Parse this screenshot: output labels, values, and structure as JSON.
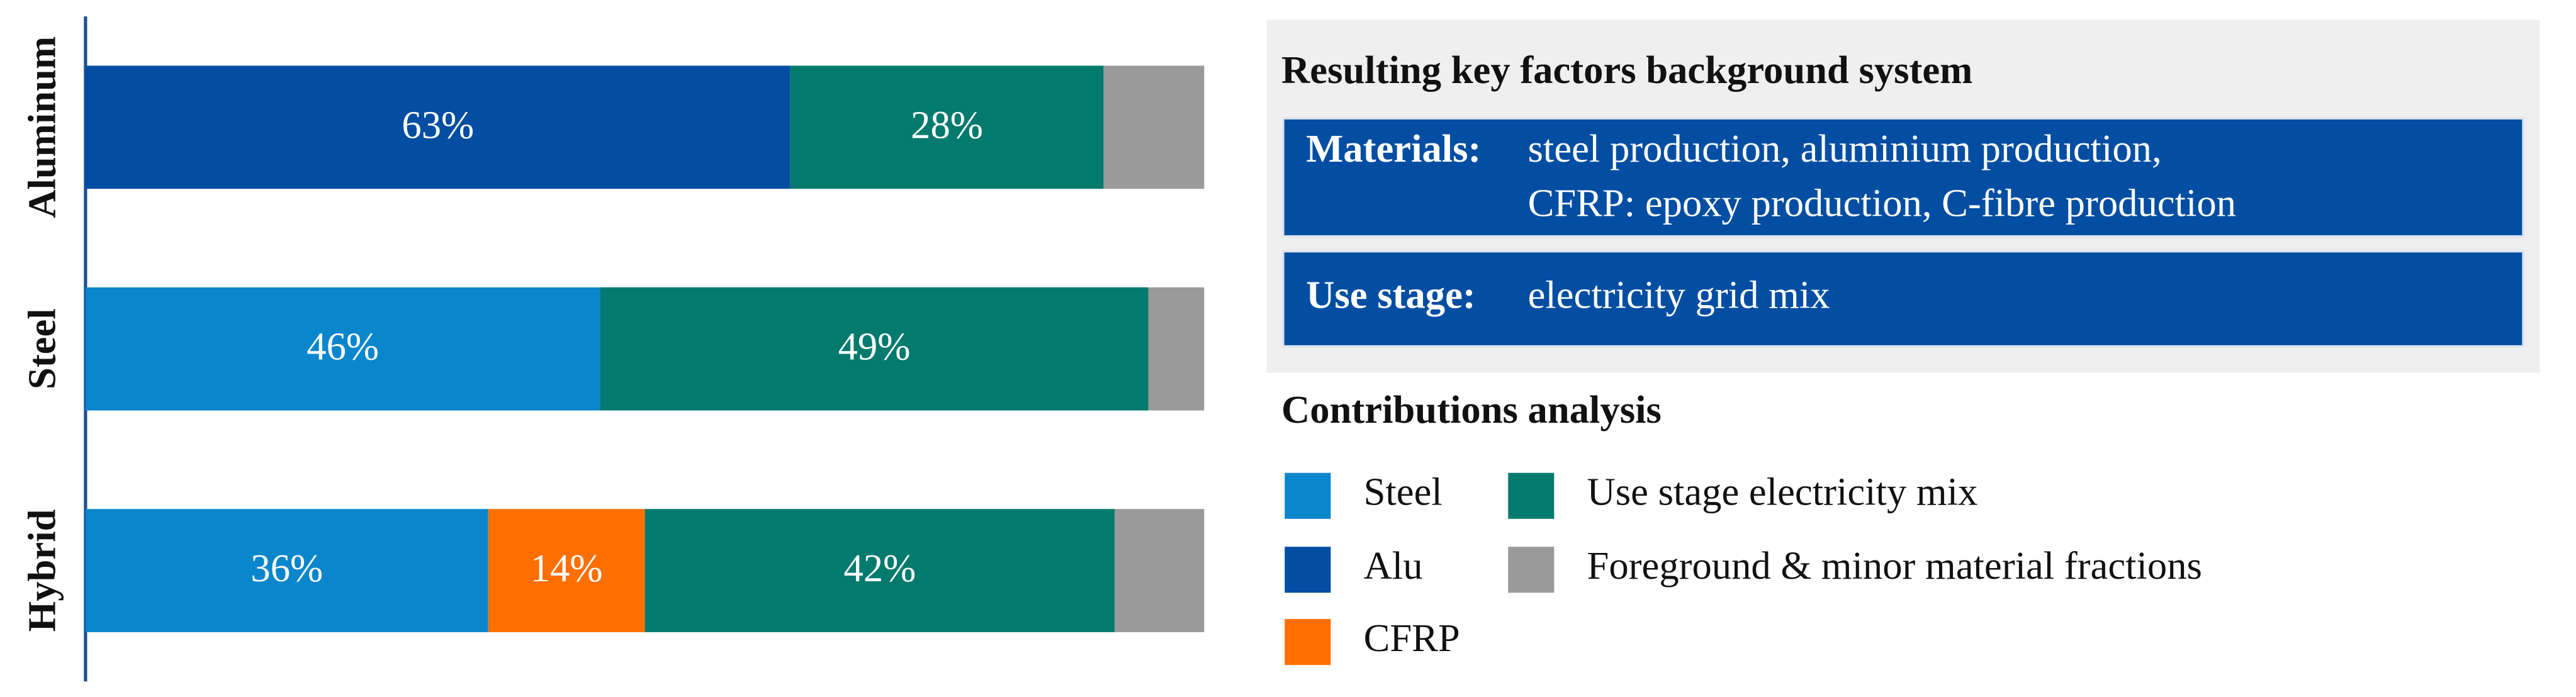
{
  "chart_data": {
    "type": "stacked-barh",
    "categories": [
      "Aluminum",
      "Steel",
      "Hybrid"
    ],
    "series": [
      {
        "name": "Steel",
        "color": "#0a86cc",
        "values": [
          null,
          46,
          36
        ],
        "value_labels": [
          null,
          "46%",
          "36%"
        ]
      },
      {
        "name": "Alu",
        "color": "#034ea2",
        "values": [
          63,
          null,
          null
        ],
        "value_labels": [
          "63%",
          null,
          null
        ]
      },
      {
        "name": "CFRP",
        "color": "#ff6f00",
        "values": [
          null,
          null,
          14
        ],
        "value_labels": [
          null,
          null,
          "14%"
        ]
      },
      {
        "name": "Use stage electricity mix",
        "color": "#027a6e",
        "values": [
          28,
          49,
          42
        ],
        "value_labels": [
          "28%",
          "49%",
          "42%"
        ]
      },
      {
        "name": "Foreground & minor material fractions",
        "color": "#9a9a9a",
        "values": [
          9,
          5,
          8
        ]
      }
    ],
    "legend_title": "Contributions analysis",
    "info_panel": {
      "title": "Resulting key factors background system",
      "items": [
        {
          "label": "Materials:",
          "lines": [
            "steel production, aluminium production,",
            "CFRP: epoxy  production, C-fibre production"
          ]
        },
        {
          "label": "Use stage:",
          "lines": [
            "electricity grid mix"
          ]
        }
      ]
    }
  }
}
